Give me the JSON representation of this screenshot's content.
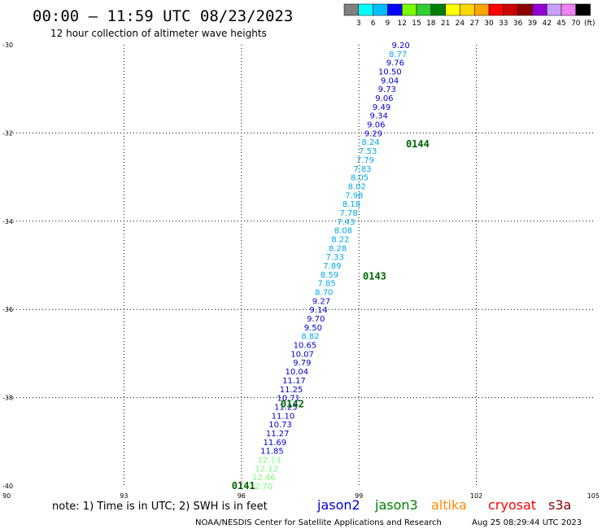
{
  "header": {
    "title": "00:00 – 11:59 UTC 08/23/2023",
    "subtitle": "12 hour collection of altimeter wave heights"
  },
  "colorbar": {
    "colors": [
      "#808080",
      "#00ffff",
      "#00bfff",
      "#0000ff",
      "#7cfc00",
      "#32cd32",
      "#008000",
      "#ffff00",
      "#ffd700",
      "#ffa500",
      "#ff0000",
      "#cc0000",
      "#8b0000",
      "#9400d3",
      "#c8a0ff",
      "#ee82ee",
      "#000000"
    ],
    "labels": [
      "3",
      "6",
      "9",
      "12",
      "15",
      "18",
      "21",
      "24",
      "27",
      "30",
      "33",
      "36",
      "39",
      "42",
      "45",
      "70"
    ],
    "unit": "(ft)"
  },
  "footer": {
    "note": "note: 1) Time is in UTC; 2) SWH is in feet",
    "satellites": [
      {
        "name": "jason2",
        "color": "#0000cc"
      },
      {
        "name": "jason3",
        "color": "#008000"
      },
      {
        "name": "altika",
        "color": "#ff8c00"
      },
      {
        "name": "cryosat",
        "color": "#ff0000"
      },
      {
        "name": "s3a",
        "color": "#8b0000"
      }
    ],
    "credit": "NOAA/NESDIS Center for Satellite Applications and Research",
    "timestamp": "Aug 25 08:29:44 UTC 2023"
  },
  "chart_data": {
    "type": "scatter",
    "title": "00:00 – 11:59 UTC 08/23/2023",
    "subtitle": "12 hour collection of altimeter wave heights",
    "xlim": [
      90,
      105
    ],
    "ylim": [
      -40,
      -30
    ],
    "x_ticks": [
      "90",
      "93",
      "96",
      "99",
      "102",
      "105"
    ],
    "y_ticks": [
      "-30",
      "-32",
      "-34",
      "-36",
      "-38",
      "-40"
    ],
    "grid": true,
    "series": [
      {
        "name": "jason3",
        "points": [
          {
            "lon": 100.3,
            "lat": -30.0,
            "swh": "9.20"
          },
          {
            "lon": 100.23,
            "lat": -30.2,
            "swh": "8.77"
          },
          {
            "lon": 100.16,
            "lat": -30.4,
            "swh": "9.76"
          },
          {
            "lon": 100.09,
            "lat": -30.6,
            "swh": "10.50"
          },
          {
            "lon": 100.02,
            "lat": -30.8,
            "swh": "9.04"
          },
          {
            "lon": 99.95,
            "lat": -31.0,
            "swh": "9.73"
          },
          {
            "lon": 99.88,
            "lat": -31.2,
            "swh": "9.06"
          },
          {
            "lon": 99.81,
            "lat": -31.4,
            "swh": "9.49"
          },
          {
            "lon": 99.74,
            "lat": -31.6,
            "swh": "9.34"
          },
          {
            "lon": 99.67,
            "lat": -31.8,
            "swh": "9.06"
          },
          {
            "lon": 99.6,
            "lat": -32.0,
            "swh": "9.29"
          },
          {
            "lon": 99.53,
            "lat": -32.2,
            "swh": "8.24"
          },
          {
            "lon": 99.46,
            "lat": -32.4,
            "swh": "7.53"
          },
          {
            "lon": 99.39,
            "lat": -32.6,
            "swh": "7.79"
          },
          {
            "lon": 99.32,
            "lat": -32.8,
            "swh": "7.83"
          },
          {
            "lon": 99.25,
            "lat": -33.0,
            "swh": "8.05"
          },
          {
            "lon": 99.18,
            "lat": -33.2,
            "swh": "8.02"
          },
          {
            "lon": 99.11,
            "lat": -33.4,
            "swh": "7.98"
          },
          {
            "lon": 99.04,
            "lat": -33.6,
            "swh": "8.18"
          },
          {
            "lon": 98.97,
            "lat": -33.8,
            "swh": "7.78"
          },
          {
            "lon": 98.9,
            "lat": -34.0,
            "swh": "7.43"
          },
          {
            "lon": 98.83,
            "lat": -34.2,
            "swh": "8.08"
          },
          {
            "lon": 98.76,
            "lat": -34.4,
            "swh": "8.22"
          },
          {
            "lon": 98.69,
            "lat": -34.6,
            "swh": "8.28"
          },
          {
            "lon": 98.62,
            "lat": -34.8,
            "swh": "7.33"
          },
          {
            "lon": 98.55,
            "lat": -35.0,
            "swh": "7.89"
          },
          {
            "lon": 98.48,
            "lat": -35.2,
            "swh": "8.59"
          },
          {
            "lon": 98.41,
            "lat": -35.4,
            "swh": "7.85"
          },
          {
            "lon": 98.34,
            "lat": -35.6,
            "swh": "8.70"
          },
          {
            "lon": 98.27,
            "lat": -35.8,
            "swh": "9.27"
          },
          {
            "lon": 98.2,
            "lat": -36.0,
            "swh": "9.14"
          },
          {
            "lon": 98.13,
            "lat": -36.2,
            "swh": "9.70"
          },
          {
            "lon": 98.06,
            "lat": -36.4,
            "swh": "9.50"
          },
          {
            "lon": 97.99,
            "lat": -36.6,
            "swh": "8.82"
          },
          {
            "lon": 97.92,
            "lat": -36.8,
            "swh": "10.65"
          },
          {
            "lon": 97.85,
            "lat": -37.0,
            "swh": "10.07"
          },
          {
            "lon": 97.78,
            "lat": -37.2,
            "swh": "9.79"
          },
          {
            "lon": 97.71,
            "lat": -37.4,
            "swh": "10.04"
          },
          {
            "lon": 97.64,
            "lat": -37.6,
            "swh": "11.17"
          },
          {
            "lon": 97.57,
            "lat": -37.8,
            "swh": "11.25"
          },
          {
            "lon": 97.5,
            "lat": -38.0,
            "swh": "10.71"
          },
          {
            "lon": 97.43,
            "lat": -38.2,
            "swh": "11.25"
          },
          {
            "lon": 97.36,
            "lat": -38.4,
            "swh": "11.10"
          },
          {
            "lon": 97.29,
            "lat": -38.6,
            "swh": "10.73"
          },
          {
            "lon": 97.22,
            "lat": -38.8,
            "swh": "11.27"
          },
          {
            "lon": 97.15,
            "lat": -39.0,
            "swh": "11.69"
          },
          {
            "lon": 97.08,
            "lat": -39.2,
            "swh": "11.85"
          },
          {
            "lon": 97.01,
            "lat": -39.4,
            "swh": "12.13"
          },
          {
            "lon": 96.94,
            "lat": -39.6,
            "swh": "12.12"
          },
          {
            "lon": 96.87,
            "lat": -39.8,
            "swh": "12.46"
          },
          {
            "lon": 96.8,
            "lat": -40.0,
            "swh": "12.70"
          },
          {
            "lon": 96.73,
            "lat": -40.2,
            "swh": "11.99"
          },
          {
            "lon": 96.66,
            "lat": -40.4,
            "swh": "11.69"
          }
        ]
      }
    ],
    "annotations": [
      {
        "text": "0144",
        "lon": 100.2,
        "lat": -32.25
      },
      {
        "text": "0143",
        "lon": 99.1,
        "lat": -35.25
      },
      {
        "text": "0142",
        "lon": 97.0,
        "lat": -38.15
      },
      {
        "text": "0141",
        "lon": 95.75,
        "lat": -40.0
      }
    ]
  }
}
